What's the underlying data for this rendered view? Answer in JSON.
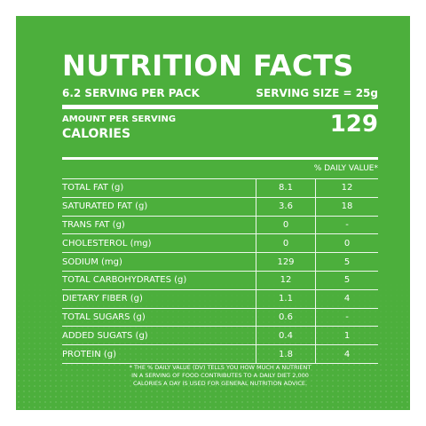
{
  "label": {
    "title": "NUTRITION FACTS",
    "servings_per_pack": "6.2 SERVING PER PACK",
    "serving_size": "SERVING SIZE = 25g",
    "amount_per_serving": "AMOUNT PER SERVING",
    "calories_label": "CALORIES",
    "calories_value": "129",
    "daily_value_header": "% DAILY VALUE*",
    "rows": [
      {
        "name": "TOTAL FAT (g)",
        "amount": "8.1",
        "dv": "12"
      },
      {
        "name": "SATURATED FAT (g)",
        "amount": "3.6",
        "dv": "18"
      },
      {
        "name": "TRANS FAT (g)",
        "amount": "0",
        "dv": "-"
      },
      {
        "name": "CHOLESTEROL (mg)",
        "amount": "0",
        "dv": "0"
      },
      {
        "name": "SODIUM (mg)",
        "amount": "129",
        "dv": "5"
      },
      {
        "name": "TOTAL CARBOHYDRATES (g)",
        "amount": "12",
        "dv": "5"
      },
      {
        "name": "DIETARY FIBER (g)",
        "amount": "1.1",
        "dv": "4"
      },
      {
        "name": "TOTAL SUGARS (g)",
        "amount": "0.6",
        "dv": "-"
      },
      {
        "name": "ADDED SUGATS (g)",
        "amount": "0.4",
        "dv": "1"
      },
      {
        "name": "PROTEIN (g)",
        "amount": "1.8",
        "dv": "4"
      }
    ],
    "footnote_lines": [
      "* THE % DAILY VALUE (DV) TELLS YOU HOW MUCH A NUTRIENT",
      "IN A SERVING OF FOOD CONTRIBUTES TO A DAILY DIET 2,000",
      "CALORIES A DAY IS USED FOR GENERAL NUTRITION ADVICE."
    ]
  },
  "colors": {
    "panel_green": "#4caf3c",
    "text": "#ffffff"
  }
}
